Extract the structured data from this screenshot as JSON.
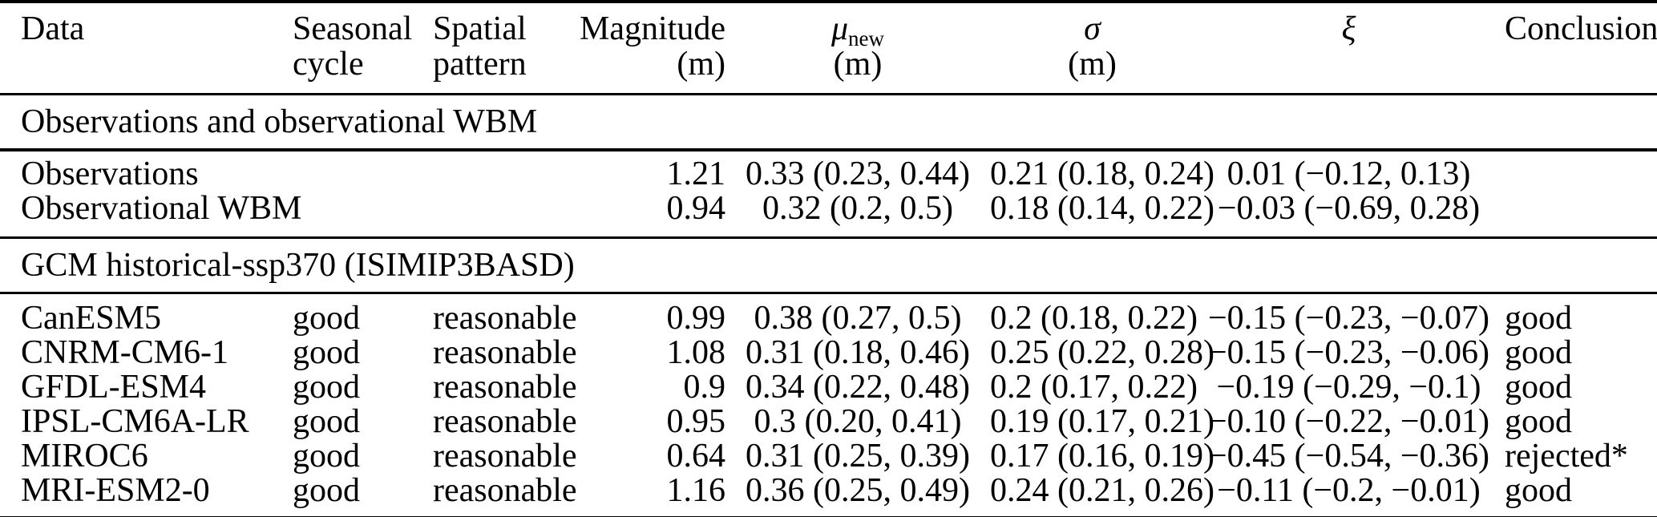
{
  "table": {
    "header": {
      "data_l1": "Data",
      "seasonal_l1": "Seasonal",
      "seasonal_l2": "cycle",
      "spatial_l1": "Spatial",
      "spatial_l2": "pattern",
      "magnitude_l1": "Magnitude",
      "magnitude_l2": "(m)",
      "mu_symbol": "μ",
      "mu_subscript": "new",
      "mu_l2": "(m)",
      "sigma_symbol": "σ",
      "sigma_l2": "(m)",
      "xi_symbol": "ξ",
      "conclusion_l1": "Conclusion"
    },
    "sections": [
      {
        "title": "Observations and observational WBM",
        "rows": [
          {
            "data": "Observations",
            "seasonal": "",
            "spatial": "",
            "magnitude": "1.21",
            "mu": "0.33 (0.23, 0.44)",
            "sigma": "0.21 (0.18, 0.24)",
            "xi": "0.01 (−0.12, 0.13)",
            "conclusion": ""
          },
          {
            "data": "Observational WBM",
            "seasonal": "",
            "spatial": "",
            "magnitude": "0.94",
            "mu": "0.32 (0.2, 0.5)",
            "sigma": "0.18 (0.14, 0.22)",
            "xi": "−0.03 (−0.69, 0.28)",
            "conclusion": ""
          }
        ]
      },
      {
        "title": "GCM historical-ssp370 (ISIMIP3BASD)",
        "rows": [
          {
            "data": "CanESM5",
            "seasonal": "good",
            "spatial": "reasonable",
            "magnitude": "0.99",
            "mu": "0.38 (0.27, 0.5)",
            "sigma": "0.2 (0.18, 0.22)",
            "xi": "−0.15 (−0.23, −0.07)",
            "conclusion": "good"
          },
          {
            "data": "CNRM-CM6-1",
            "seasonal": "good",
            "spatial": "reasonable",
            "magnitude": "1.08",
            "mu": "0.31 (0.18, 0.46)",
            "sigma": "0.25 (0.22, 0.28)",
            "xi": "−0.15 (−0.23, −0.06)",
            "conclusion": "good"
          },
          {
            "data": "GFDL-ESM4",
            "seasonal": "good",
            "spatial": "reasonable",
            "magnitude": "0.9",
            "mu": "0.34 (0.22, 0.48)",
            "sigma": "0.2 (0.17, 0.22)",
            "xi": "−0.19 (−0.29, −0.1)",
            "conclusion": "good"
          },
          {
            "data": "IPSL-CM6A-LR",
            "seasonal": "good",
            "spatial": "reasonable",
            "magnitude": "0.95",
            "mu": "0.3 (0.20, 0.41)",
            "sigma": "0.19 (0.17, 0.21)",
            "xi": "−0.10 (−0.22, −0.01)",
            "conclusion": "good"
          },
          {
            "data": "MIROC6",
            "seasonal": "good",
            "spatial": "reasonable",
            "magnitude": "0.64",
            "mu": "0.31 (0.25, 0.39)",
            "sigma": "0.17 (0.16, 0.19)",
            "xi": "−0.45 (−0.54, −0.36)",
            "conclusion": "rejected*"
          },
          {
            "data": "MRI-ESM2-0",
            "seasonal": "good",
            "spatial": "reasonable",
            "magnitude": "1.16",
            "mu": "0.36 (0.25, 0.49)",
            "sigma": "0.24 (0.21, 0.26)",
            "xi": "−0.11 (−0.2, −0.01)",
            "conclusion": "good"
          }
        ]
      }
    ],
    "text_color": "#000000",
    "background_color": "#ffffff"
  }
}
